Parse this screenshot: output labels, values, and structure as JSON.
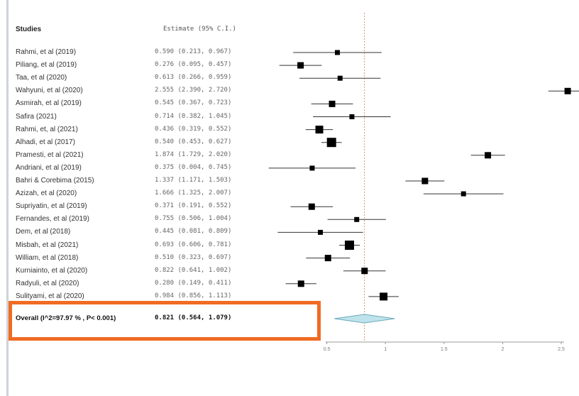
{
  "headers": {
    "studies": "Studies",
    "estimate": "Estimate (95% C.I.)"
  },
  "overall": {
    "label": "Overall (I^2=97.97 % , P< 0.001)",
    "estimate_text": "0.821 (0.564, 1.079)"
  },
  "highlight_color": "#f06b23",
  "marker_color": "#000000",
  "diamond_fill": "#bfe3ec",
  "reference_line_color": "#d9946a",
  "chart_data": {
    "type": "forest",
    "title": "",
    "xlabel": "",
    "ylabel": "",
    "xlim": [
      0,
      2.5
    ],
    "xticks": [
      0.5,
      1,
      1.5,
      2,
      2.5
    ],
    "xtick_labels": [
      "0.5",
      "1",
      "1.5",
      "2",
      "2.5"
    ],
    "reference_line": 0.821,
    "studies": [
      {
        "label": "Rahmi, et al (2019)",
        "estimate_text": "0.590 (0.213, 0.967)",
        "est": 0.59,
        "lo": 0.213,
        "hi": 0.967,
        "weight": 1
      },
      {
        "label": "Piliang, et al (2019)",
        "estimate_text": "0.276 (0.095, 0.457)",
        "est": 0.276,
        "lo": 0.095,
        "hi": 0.457,
        "weight": 2
      },
      {
        "label": "Taa, et al (2020)",
        "estimate_text": "0.613 (0.266, 0.959)",
        "est": 0.613,
        "lo": 0.266,
        "hi": 0.959,
        "weight": 1
      },
      {
        "label": "Wahyuni, et al (2020)",
        "estimate_text": "2.555 (2.390, 2.720)",
        "est": 2.555,
        "lo": 2.39,
        "hi": 2.72,
        "weight": 2
      },
      {
        "label": "Asmirah, et al (2019)",
        "estimate_text": "0.545 (0.367, 0.723)",
        "est": 0.545,
        "lo": 0.367,
        "hi": 0.723,
        "weight": 2
      },
      {
        "label": "Safira (2021)",
        "estimate_text": "0.714 (0.382, 1.045)",
        "est": 0.714,
        "lo": 0.382,
        "hi": 1.045,
        "weight": 1
      },
      {
        "label": "Rahmi, et, al (2021)",
        "estimate_text": "0.436 (0.319, 0.552)",
        "est": 0.436,
        "lo": 0.319,
        "hi": 0.552,
        "weight": 3
      },
      {
        "label": "Alhadi, et al (2017)",
        "estimate_text": "0.540 (0.453, 0.627)",
        "est": 0.54,
        "lo": 0.453,
        "hi": 0.627,
        "weight": 4
      },
      {
        "label": "Pramesti, et al (2021)",
        "estimate_text": "1.874 (1.729, 2.020)",
        "est": 1.874,
        "lo": 1.729,
        "hi": 2.02,
        "weight": 2
      },
      {
        "label": "Andriani, et al (2019)",
        "estimate_text": "0.375 (0.004, 0.745)",
        "est": 0.375,
        "lo": 0.004,
        "hi": 0.745,
        "weight": 1
      },
      {
        "label": "Bahri & Corebima (2015)",
        "estimate_text": "1.337 (1.171, 1.503)",
        "est": 1.337,
        "lo": 1.171,
        "hi": 1.503,
        "weight": 2
      },
      {
        "label": "Azizah, et al (2020)",
        "estimate_text": "1.666 (1.325, 2.007)",
        "est": 1.666,
        "lo": 1.325,
        "hi": 2.007,
        "weight": 1
      },
      {
        "label": "Supriyatin, et al (2019)",
        "estimate_text": "0.371 (0.191, 0.552)",
        "est": 0.371,
        "lo": 0.191,
        "hi": 0.552,
        "weight": 2
      },
      {
        "label": "Fernandes, et al (2019)",
        "estimate_text": "0.755 (0.506, 1.004)",
        "est": 0.755,
        "lo": 0.506,
        "hi": 1.004,
        "weight": 1
      },
      {
        "label": "Dem, et al (2018)",
        "estimate_text": "0.445 (0.081, 0.809)",
        "est": 0.445,
        "lo": 0.081,
        "hi": 0.809,
        "weight": 1
      },
      {
        "label": "Misbah, et al (2021)",
        "estimate_text": "0.693 (0.606, 0.781)",
        "est": 0.693,
        "lo": 0.606,
        "hi": 0.781,
        "weight": 4
      },
      {
        "label": "William, et al (2018)",
        "estimate_text": "0.510 (0.323, 0.697)",
        "est": 0.51,
        "lo": 0.323,
        "hi": 0.697,
        "weight": 2
      },
      {
        "label": "Kurniainto, et al (2020)",
        "estimate_text": "0.822 (0.641, 1.002)",
        "est": 0.822,
        "lo": 0.641,
        "hi": 1.002,
        "weight": 2
      },
      {
        "label": "Radyuli, et al (2020)",
        "estimate_text": "0.280 (0.149, 0.411)",
        "est": 0.28,
        "lo": 0.149,
        "hi": 0.411,
        "weight": 2
      },
      {
        "label": "Sulityami, et al (2020)",
        "estimate_text": "0.984 (0.856, 1.113)",
        "est": 0.984,
        "lo": 0.856,
        "hi": 1.113,
        "weight": 3
      }
    ],
    "overall": {
      "est": 0.821,
      "lo": 0.564,
      "hi": 1.079
    }
  }
}
